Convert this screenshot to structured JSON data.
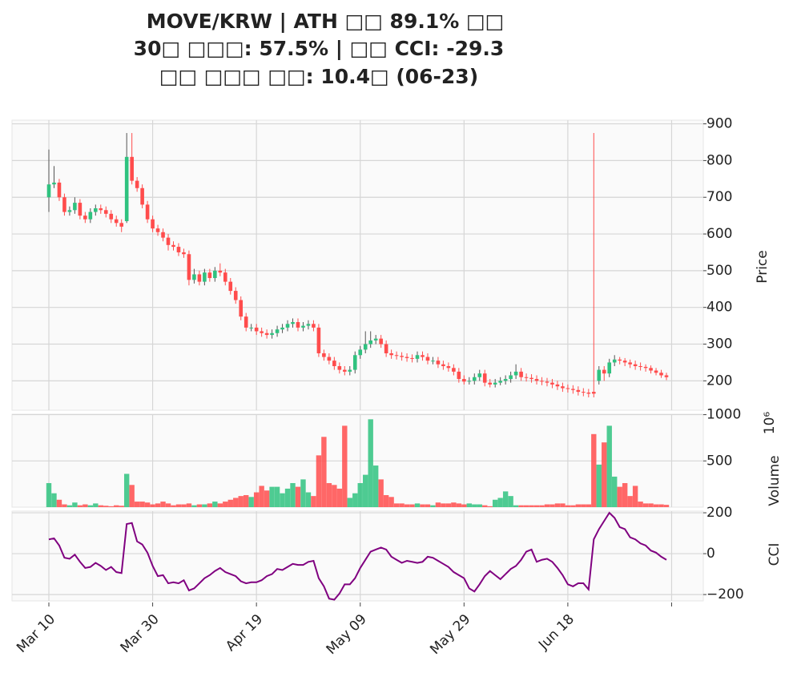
{
  "chart_data": {
    "type": "candlestick",
    "title_lines": [
      "MOVE/KRW | ATH □□ 89.1% □□",
      "30□ □□□: 57.5% | □□ CCI: -29.3",
      "□□ □□□ □□: 10.4□ (06-23)"
    ],
    "xlim": [
      -7.1,
      126.1
    ],
    "xticks": [
      {
        "value": 0,
        "label": "Mar 10"
      },
      {
        "value": 20,
        "label": "Mar 30"
      },
      {
        "value": 40,
        "label": "Apr 19"
      },
      {
        "value": 60,
        "label": "May 09"
      },
      {
        "value": 80,
        "label": "May 29"
      },
      {
        "value": 100,
        "label": "Jun 18"
      },
      {
        "value": 120,
        "label": null
      }
    ],
    "up_color": "#2fc27f",
    "down_color": "#ff4c4c",
    "grid": true,
    "price": {
      "ylabel": "Price",
      "ylim": [
        120,
        910
      ],
      "yticks": [
        200,
        300,
        400,
        500,
        600,
        700,
        800,
        900
      ],
      "open": [
        700,
        735,
        740,
        700,
        660,
        665,
        685,
        650,
        640,
        660,
        670,
        665,
        655,
        640,
        630,
        635,
        810,
        745,
        725,
        680,
        640,
        615,
        605,
        590,
        570,
        565,
        550,
        545,
        475,
        490,
        470,
        495,
        480,
        500,
        495,
        470,
        445,
        420,
        375,
        345,
        345,
        335,
        330,
        325,
        330,
        340,
        345,
        355,
        360,
        345,
        350,
        355,
        345,
        275,
        265,
        255,
        240,
        230,
        225,
        230,
        270,
        285,
        300,
        310,
        315,
        300,
        275,
        270,
        268,
        265,
        262,
        260,
        270,
        265,
        255,
        255,
        245,
        240,
        235,
        225,
        205,
        198,
        200,
        210,
        220,
        195,
        190,
        195,
        200,
        205,
        215,
        225,
        210,
        208,
        205,
        200,
        198,
        195,
        190,
        185,
        180,
        178,
        175,
        170,
        168,
        170,
        200,
        230,
        220,
        250,
        258,
        255,
        250,
        245,
        240,
        238,
        235,
        228,
        222,
        215
      ],
      "high": [
        830,
        785,
        750,
        710,
        675,
        700,
        695,
        660,
        670,
        680,
        680,
        675,
        665,
        650,
        640,
        875,
        875,
        755,
        735,
        690,
        650,
        625,
        615,
        600,
        580,
        575,
        560,
        555,
        505,
        500,
        505,
        505,
        510,
        520,
        505,
        480,
        455,
        430,
        385,
        355,
        355,
        345,
        340,
        340,
        350,
        355,
        365,
        370,
        370,
        360,
        365,
        365,
        355,
        285,
        275,
        265,
        250,
        240,
        240,
        280,
        295,
        335,
        335,
        325,
        325,
        310,
        285,
        280,
        278,
        275,
        272,
        280,
        280,
        275,
        265,
        265,
        255,
        250,
        245,
        235,
        215,
        210,
        220,
        230,
        230,
        205,
        205,
        210,
        215,
        225,
        245,
        235,
        220,
        218,
        215,
        210,
        208,
        205,
        200,
        195,
        190,
        188,
        185,
        180,
        178,
        875,
        240,
        240,
        260,
        270,
        265,
        262,
        258,
        255,
        250,
        245,
        242,
        235,
        230,
        222
      ],
      "low": [
        660,
        725,
        690,
        650,
        650,
        655,
        640,
        630,
        630,
        650,
        655,
        645,
        630,
        620,
        605,
        630,
        735,
        715,
        670,
        630,
        605,
        595,
        580,
        555,
        555,
        540,
        535,
        460,
        465,
        460,
        460,
        470,
        470,
        485,
        460,
        435,
        410,
        365,
        335,
        335,
        325,
        320,
        315,
        315,
        320,
        330,
        335,
        345,
        335,
        335,
        340,
        335,
        265,
        255,
        245,
        230,
        220,
        215,
        215,
        220,
        260,
        275,
        290,
        300,
        290,
        265,
        260,
        258,
        255,
        252,
        250,
        250,
        255,
        245,
        245,
        235,
        230,
        225,
        215,
        195,
        190,
        190,
        190,
        200,
        185,
        182,
        182,
        188,
        190,
        195,
        205,
        200,
        198,
        195,
        190,
        188,
        185,
        180,
        175,
        170,
        168,
        165,
        160,
        158,
        155,
        155,
        190,
        200,
        210,
        240,
        245,
        240,
        235,
        230,
        228,
        225,
        220,
        215,
        208,
        202
      ],
      "close": [
        735,
        740,
        700,
        660,
        665,
        685,
        650,
        640,
        660,
        670,
        665,
        655,
        640,
        630,
        620,
        810,
        745,
        725,
        680,
        640,
        615,
        605,
        590,
        570,
        565,
        550,
        545,
        475,
        490,
        470,
        495,
        480,
        500,
        495,
        470,
        445,
        420,
        375,
        345,
        345,
        335,
        330,
        325,
        330,
        340,
        345,
        355,
        360,
        345,
        350,
        355,
        345,
        275,
        265,
        255,
        240,
        230,
        225,
        230,
        270,
        285,
        300,
        310,
        315,
        300,
        275,
        270,
        268,
        265,
        262,
        260,
        270,
        265,
        255,
        255,
        245,
        240,
        235,
        225,
        205,
        198,
        200,
        210,
        220,
        195,
        190,
        195,
        200,
        205,
        215,
        225,
        210,
        208,
        205,
        200,
        198,
        195,
        190,
        185,
        180,
        178,
        175,
        170,
        168,
        165,
        165,
        230,
        220,
        250,
        258,
        255,
        250,
        245,
        240,
        238,
        235,
        228,
        222,
        215,
        210
      ]
    },
    "volume": {
      "ylabel": "Volume",
      "offset_label": "10⁶",
      "ylim": [
        0,
        1005
      ],
      "yticks": [
        500,
        1000
      ],
      "values": [
        260,
        150,
        80,
        30,
        20,
        50,
        20,
        30,
        20,
        40,
        20,
        15,
        10,
        20,
        15,
        360,
        240,
        60,
        60,
        50,
        30,
        40,
        60,
        40,
        20,
        30,
        30,
        40,
        20,
        30,
        30,
        40,
        60,
        40,
        60,
        80,
        100,
        120,
        130,
        110,
        160,
        230,
        180,
        220,
        220,
        150,
        200,
        260,
        220,
        300,
        160,
        120,
        560,
        760,
        260,
        240,
        200,
        880,
        100,
        150,
        260,
        350,
        950,
        450,
        300,
        130,
        110,
        40,
        40,
        30,
        30,
        40,
        30,
        30,
        20,
        50,
        40,
        40,
        50,
        40,
        30,
        40,
        30,
        30,
        20,
        10,
        80,
        100,
        170,
        120,
        20,
        20,
        20,
        20,
        20,
        20,
        30,
        30,
        40,
        40,
        20,
        20,
        30,
        30,
        30,
        790,
        460,
        700,
        880,
        330,
        220,
        260,
        120,
        230,
        60,
        40,
        40,
        30,
        30,
        25
      ]
    },
    "cci": {
      "ylabel": "CCI",
      "color": "#800080",
      "ylim": [
        -231,
        208
      ],
      "yticks": [
        200,
        0,
        {
          "value": -200,
          "label": "−200"
        }
      ],
      "values": [
        70,
        75,
        40,
        -20,
        -25,
        -5,
        -40,
        -70,
        -65,
        -45,
        -60,
        -80,
        -65,
        -90,
        -95,
        145,
        150,
        60,
        45,
        5,
        -60,
        -110,
        -105,
        -145,
        -140,
        -145,
        -130,
        -180,
        -170,
        -145,
        -120,
        -105,
        -85,
        -70,
        -90,
        -100,
        -110,
        -135,
        -145,
        -140,
        -140,
        -130,
        -110,
        -100,
        -75,
        -80,
        -65,
        -50,
        -55,
        -55,
        -40,
        -35,
        -120,
        -160,
        -220,
        -225,
        -195,
        -150,
        -150,
        -120,
        -70,
        -30,
        10,
        20,
        30,
        20,
        -15,
        -30,
        -45,
        -35,
        -40,
        -45,
        -40,
        -15,
        -20,
        -35,
        -50,
        -65,
        -90,
        -105,
        -120,
        -170,
        -185,
        -150,
        -110,
        -85,
        -105,
        -125,
        -100,
        -75,
        -60,
        -30,
        10,
        20,
        -40,
        -30,
        -25,
        -40,
        -70,
        -105,
        -150,
        -160,
        -145,
        -145,
        -175,
        70,
        120,
        160,
        200,
        175,
        130,
        120,
        80,
        70,
        50,
        40,
        15,
        5,
        -15,
        -30
      ]
    }
  }
}
